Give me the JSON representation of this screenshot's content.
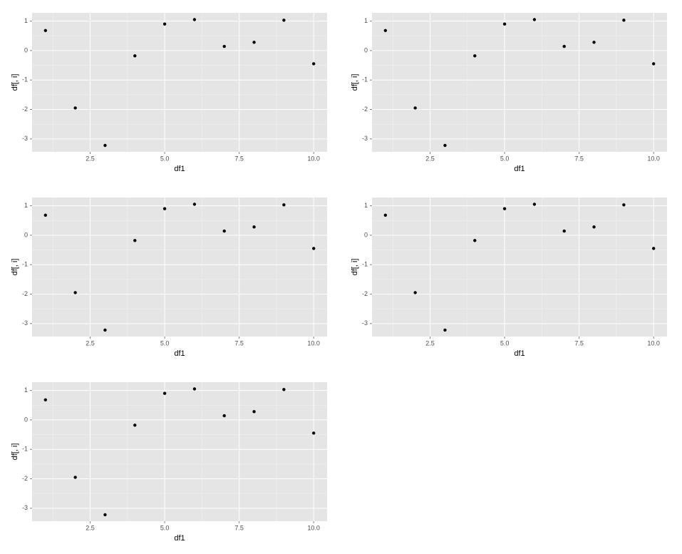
{
  "chart_data": [
    {
      "type": "scatter",
      "x_label": "df1",
      "y_label": "df[, i]",
      "x": [
        1,
        2,
        3,
        4,
        5,
        6,
        7,
        8,
        9,
        10
      ],
      "values": [
        0.68,
        -1.95,
        -3.22,
        -0.18,
        0.9,
        1.05,
        0.14,
        0.28,
        1.03,
        -0.45
      ],
      "color": "#000000",
      "xlim": [
        0.55,
        10.45
      ],
      "ylim": [
        -3.44,
        1.28
      ],
      "xticks": [
        2.5,
        {
          "value": 5,
          "label": "5.0"
        },
        7.5,
        {
          "value": 10,
          "label": "10.0"
        }
      ],
      "yticks": [
        -3,
        -2,
        -1,
        0,
        1
      ],
      "xminor": [
        1.25,
        3.75,
        6.25,
        8.75
      ],
      "yminor": [
        -2.5,
        -1.5,
        -0.5,
        0.5
      ],
      "grid": true
    },
    {
      "type": "scatter",
      "x_label": "df1",
      "y_label": "df[, i]",
      "x": [
        1,
        2,
        3,
        4,
        5,
        6,
        7,
        8,
        9,
        10
      ],
      "values": [
        0.68,
        -1.95,
        -3.22,
        -0.18,
        0.9,
        1.05,
        0.14,
        0.28,
        1.03,
        -0.45
      ],
      "color": "#000000",
      "xlim": [
        0.55,
        10.45
      ],
      "ylim": [
        -3.44,
        1.28
      ],
      "xticks": [
        2.5,
        {
          "value": 5,
          "label": "5.0"
        },
        7.5,
        {
          "value": 10,
          "label": "10.0"
        }
      ],
      "yticks": [
        -3,
        -2,
        -1,
        0,
        1
      ],
      "xminor": [
        1.25,
        3.75,
        6.25,
        8.75
      ],
      "yminor": [
        -2.5,
        -1.5,
        -0.5,
        0.5
      ],
      "grid": true
    },
    {
      "type": "scatter",
      "x_label": "df1",
      "y_label": "df[, i]",
      "x": [
        1,
        2,
        3,
        4,
        5,
        6,
        7,
        8,
        9,
        10
      ],
      "values": [
        0.68,
        -1.95,
        -3.22,
        -0.18,
        0.9,
        1.05,
        0.14,
        0.28,
        1.03,
        -0.45
      ],
      "color": "#000000",
      "xlim": [
        0.55,
        10.45
      ],
      "ylim": [
        -3.44,
        1.28
      ],
      "xticks": [
        2.5,
        {
          "value": 5,
          "label": "5.0"
        },
        7.5,
        {
          "value": 10,
          "label": "10.0"
        }
      ],
      "yticks": [
        -3,
        -2,
        -1,
        0,
        1
      ],
      "xminor": [
        1.25,
        3.75,
        6.25,
        8.75
      ],
      "yminor": [
        -2.5,
        -1.5,
        -0.5,
        0.5
      ],
      "grid": true
    },
    {
      "type": "scatter",
      "x_label": "df1",
      "y_label": "df[, i]",
      "x": [
        1,
        2,
        3,
        4,
        5,
        6,
        7,
        8,
        9,
        10
      ],
      "values": [
        0.68,
        -1.95,
        -3.22,
        -0.18,
        0.9,
        1.05,
        0.14,
        0.28,
        1.03,
        -0.45
      ],
      "color": "#000000",
      "xlim": [
        0.55,
        10.45
      ],
      "ylim": [
        -3.44,
        1.28
      ],
      "xticks": [
        2.5,
        {
          "value": 5,
          "label": "5.0"
        },
        7.5,
        {
          "value": 10,
          "label": "10.0"
        }
      ],
      "yticks": [
        -3,
        -2,
        -1,
        0,
        1
      ],
      "xminor": [
        1.25,
        3.75,
        6.25,
        8.75
      ],
      "yminor": [
        -2.5,
        -1.5,
        -0.5,
        0.5
      ],
      "grid": true
    },
    {
      "type": "scatter",
      "x_label": "df1",
      "y_label": "df[, i]",
      "x": [
        1,
        2,
        3,
        4,
        5,
        6,
        7,
        8,
        9,
        10
      ],
      "values": [
        0.68,
        -1.95,
        -3.22,
        -0.18,
        0.9,
        1.05,
        0.14,
        0.28,
        1.03,
        -0.45
      ],
      "color": "#000000",
      "xlim": [
        0.55,
        10.45
      ],
      "ylim": [
        -3.44,
        1.28
      ],
      "xticks": [
        2.5,
        {
          "value": 5,
          "label": "5.0"
        },
        7.5,
        {
          "value": 10,
          "label": "10.0"
        }
      ],
      "yticks": [
        -3,
        -2,
        -1,
        0,
        1
      ],
      "xminor": [
        1.25,
        3.75,
        6.25,
        8.75
      ],
      "yminor": [
        -2.5,
        -1.5,
        -0.5,
        0.5
      ],
      "grid": true
    }
  ]
}
